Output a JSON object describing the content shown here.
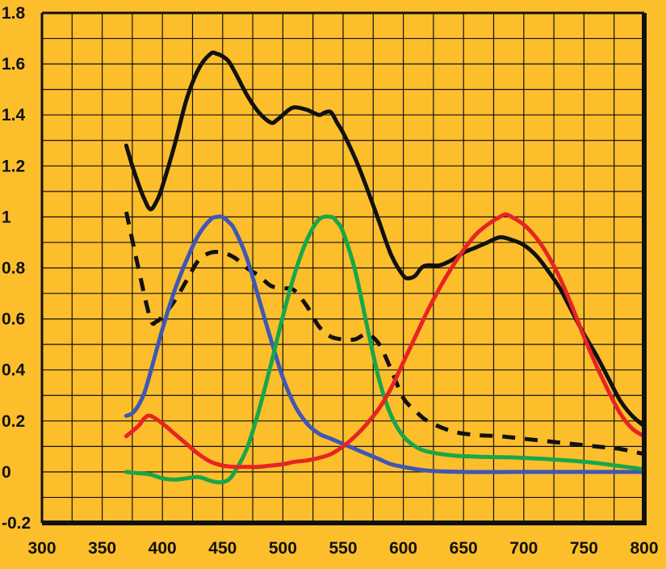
{
  "chart_data": {
    "type": "line",
    "title": "",
    "xlabel": "",
    "ylabel": "",
    "xlim": [
      300,
      800
    ],
    "ylim": [
      -0.2,
      1.8
    ],
    "x_ticks": [
      300,
      350,
      400,
      450,
      500,
      550,
      600,
      650,
      700,
      750,
      800
    ],
    "x_tick_labels": [
      "300",
      "350",
      "400",
      "450",
      "500",
      "550",
      "600",
      "650",
      "700",
      "750",
      "800"
    ],
    "y_ticks": [
      -0.2,
      0,
      0.2,
      0.4,
      0.6,
      0.8,
      1,
      1.2,
      1.4,
      1.6,
      1.8
    ],
    "y_tick_labels": [
      "-0.2",
      "0",
      "0.2",
      "0.4",
      "0.6",
      "0.8",
      "1",
      "1.2",
      "1.4",
      "1.6",
      "1.8"
    ],
    "grid": true,
    "background": "#FDBE2C",
    "series": [
      {
        "color": "#111111",
        "dash": false,
        "x": [
          370,
          375,
          380,
          385,
          390,
          395,
          400,
          410,
          420,
          430,
          440,
          445,
          450,
          455,
          460,
          470,
          480,
          490,
          495,
          500,
          505,
          510,
          520,
          530,
          535,
          540,
          545,
          550,
          560,
          570,
          580,
          590,
          600,
          605,
          610,
          615,
          620,
          630,
          640,
          650,
          660,
          670,
          680,
          690,
          700,
          710,
          720,
          730,
          740,
          750,
          760,
          770,
          780,
          790,
          800
        ],
        "y": [
          1.28,
          1.2,
          1.13,
          1.07,
          1.03,
          1.06,
          1.12,
          1.28,
          1.46,
          1.58,
          1.64,
          1.64,
          1.63,
          1.61,
          1.57,
          1.48,
          1.41,
          1.37,
          1.38,
          1.4,
          1.42,
          1.43,
          1.42,
          1.4,
          1.41,
          1.41,
          1.37,
          1.33,
          1.23,
          1.11,
          0.98,
          0.85,
          0.77,
          0.76,
          0.77,
          0.8,
          0.81,
          0.81,
          0.83,
          0.86,
          0.88,
          0.9,
          0.92,
          0.91,
          0.89,
          0.85,
          0.79,
          0.72,
          0.63,
          0.54,
          0.46,
          0.37,
          0.28,
          0.22,
          0.18
        ]
      },
      {
        "color": "#111111",
        "dash": true,
        "x": [
          370,
          380,
          390,
          395,
          400,
          410,
          420,
          430,
          440,
          450,
          460,
          470,
          480,
          490,
          500,
          505,
          510,
          520,
          530,
          540,
          550,
          560,
          570,
          580,
          590,
          600,
          610,
          620,
          640,
          660,
          680,
          700,
          720,
          740,
          760,
          780,
          800
        ],
        "y": [
          1.02,
          0.8,
          0.6,
          0.59,
          0.61,
          0.67,
          0.75,
          0.83,
          0.86,
          0.86,
          0.84,
          0.8,
          0.77,
          0.73,
          0.72,
          0.72,
          0.71,
          0.65,
          0.57,
          0.53,
          0.52,
          0.52,
          0.54,
          0.5,
          0.4,
          0.29,
          0.24,
          0.2,
          0.16,
          0.145,
          0.14,
          0.13,
          0.12,
          0.11,
          0.1,
          0.09,
          0.07
        ]
      },
      {
        "color": "#3F57B5",
        "dash": false,
        "x": [
          370,
          375,
          380,
          385,
          390,
          400,
          410,
          420,
          430,
          440,
          445,
          450,
          455,
          460,
          470,
          480,
          490,
          500,
          510,
          520,
          530,
          540,
          550,
          560,
          570,
          580,
          590,
          600,
          620,
          650,
          700,
          750,
          800
        ],
        "y": [
          0.22,
          0.23,
          0.26,
          0.31,
          0.39,
          0.56,
          0.71,
          0.83,
          0.93,
          0.99,
          1.0,
          1.0,
          0.98,
          0.95,
          0.84,
          0.68,
          0.52,
          0.37,
          0.26,
          0.19,
          0.15,
          0.13,
          0.11,
          0.09,
          0.07,
          0.05,
          0.03,
          0.02,
          0.005,
          0.0,
          0.0,
          0.0,
          0.0
        ]
      },
      {
        "color": "#19A64A",
        "dash": false,
        "x": [
          370,
          380,
          390,
          400,
          410,
          420,
          430,
          440,
          445,
          450,
          455,
          460,
          470,
          480,
          490,
          500,
          510,
          520,
          530,
          540,
          545,
          550,
          560,
          570,
          580,
          590,
          600,
          610,
          620,
          640,
          660,
          700,
          750,
          800
        ],
        "y": [
          0.0,
          -0.005,
          -0.01,
          -0.025,
          -0.03,
          -0.025,
          -0.02,
          -0.035,
          -0.04,
          -0.04,
          -0.03,
          0.0,
          0.09,
          0.24,
          0.42,
          0.61,
          0.78,
          0.91,
          0.99,
          1.0,
          0.98,
          0.94,
          0.79,
          0.57,
          0.36,
          0.22,
          0.14,
          0.1,
          0.08,
          0.065,
          0.06,
          0.055,
          0.04,
          0.01
        ]
      },
      {
        "color": "#E72424",
        "dash": false,
        "x": [
          370,
          380,
          385,
          390,
          400,
          410,
          420,
          430,
          440,
          450,
          460,
          470,
          480,
          490,
          500,
          505,
          510,
          520,
          530,
          540,
          550,
          560,
          570,
          580,
          590,
          600,
          610,
          620,
          630,
          640,
          650,
          660,
          670,
          680,
          685,
          690,
          700,
          710,
          720,
          730,
          740,
          750,
          760,
          770,
          780,
          790,
          800
        ],
        "y": [
          0.14,
          0.18,
          0.21,
          0.22,
          0.19,
          0.15,
          0.11,
          0.07,
          0.04,
          0.025,
          0.02,
          0.02,
          0.02,
          0.025,
          0.03,
          0.035,
          0.04,
          0.045,
          0.055,
          0.07,
          0.1,
          0.14,
          0.19,
          0.25,
          0.33,
          0.43,
          0.53,
          0.63,
          0.72,
          0.8,
          0.87,
          0.93,
          0.97,
          1.0,
          1.01,
          1.0,
          0.97,
          0.92,
          0.85,
          0.76,
          0.65,
          0.53,
          0.42,
          0.32,
          0.23,
          0.17,
          0.14
        ]
      }
    ]
  }
}
